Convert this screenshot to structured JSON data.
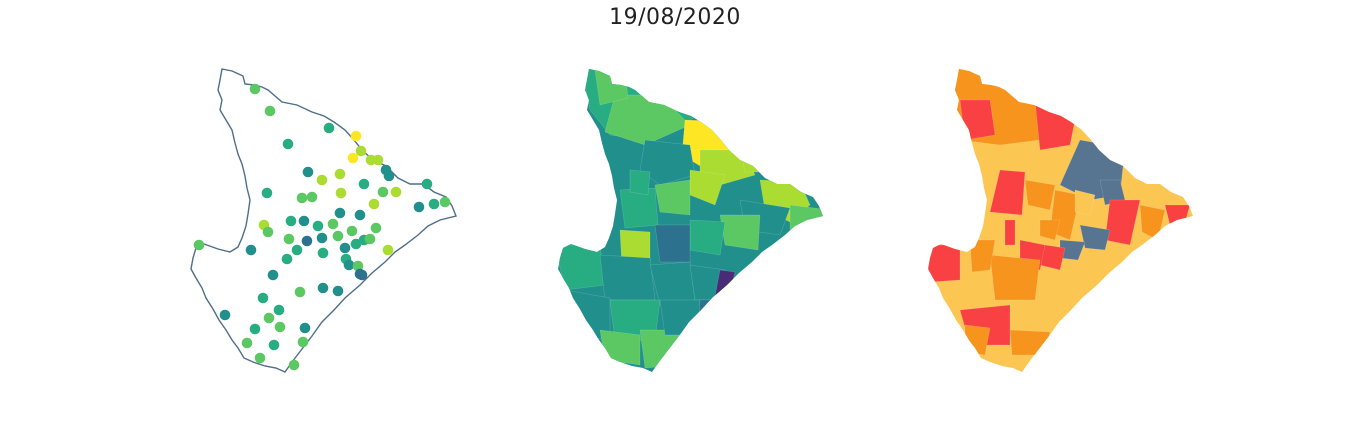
{
  "title": "19/08/2020",
  "colors": {
    "outline": "#4e6e8a",
    "viridis": [
      "#3b528b",
      "#2c728e",
      "#21908d",
      "#27ad81",
      "#5cc863",
      "#aadc32",
      "#fde725"
    ],
    "palette_dark_purple": "#4a2b78",
    "risk_levels": [
      "#fbc652",
      "#f7941d",
      "#f94144",
      "#577590"
    ]
  },
  "panels": [
    {
      "name": "station-points-map",
      "kind": "points"
    },
    {
      "name": "municipality-viridis-map",
      "kind": "choropleth-viridis"
    },
    {
      "name": "municipality-risk-map",
      "kind": "choropleth-risk"
    }
  ]
}
